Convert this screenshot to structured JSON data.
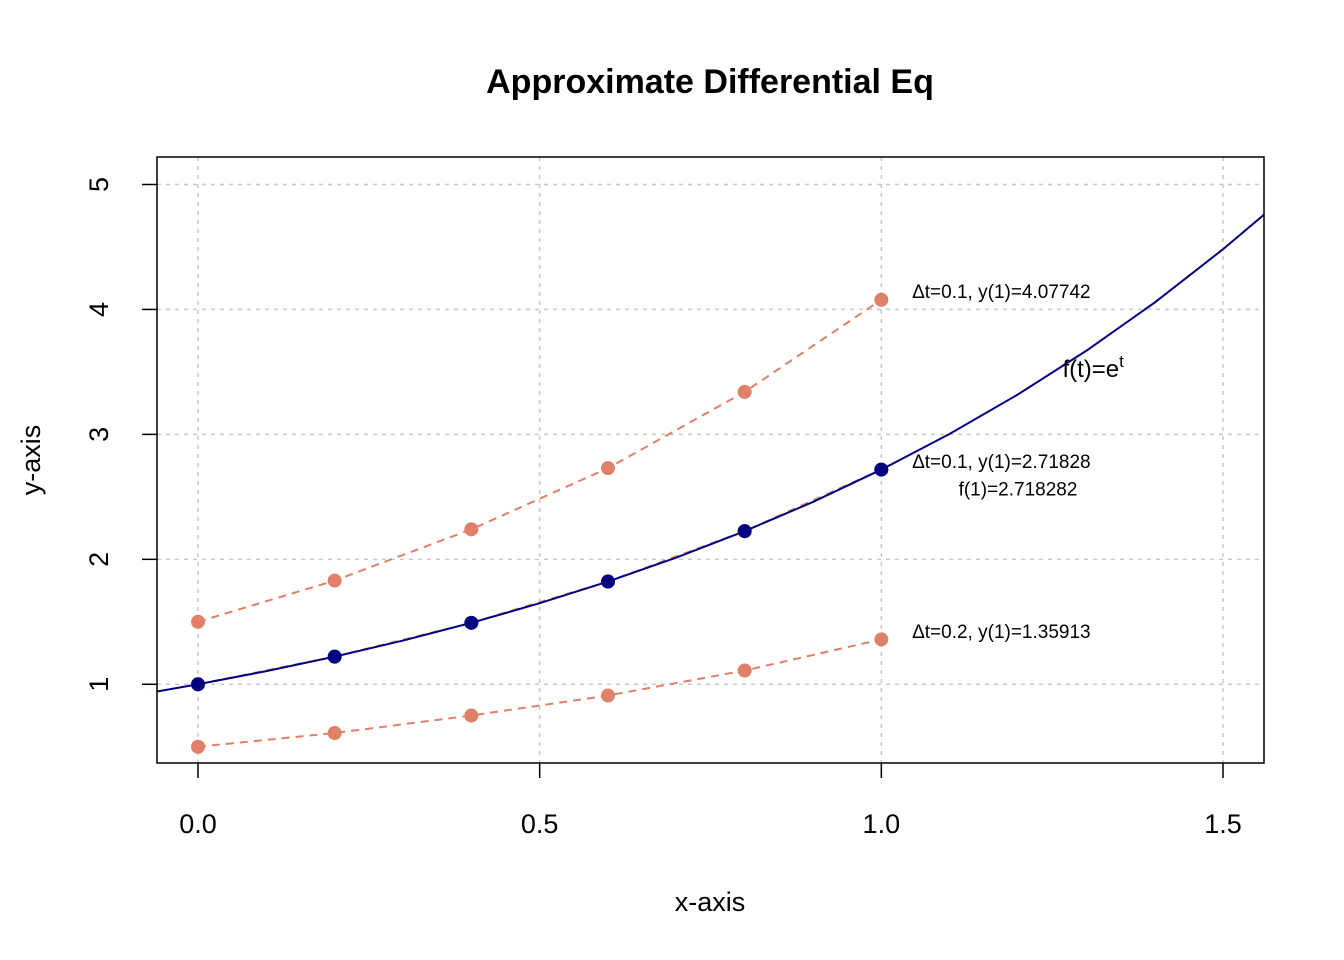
{
  "chart_data": {
    "type": "line",
    "title": "Approximate Differential Eq",
    "xlabel": "x-axis",
    "ylabel": "y-axis",
    "xlim": [
      -0.06,
      1.56
    ],
    "ylim": [
      0.37,
      5.22
    ],
    "xticks": [
      0.0,
      0.5,
      1.0,
      1.5
    ],
    "xtick_labels": [
      "0.0",
      "0.5",
      "1.0",
      "1.5"
    ],
    "yticks": [
      1,
      2,
      3,
      4,
      5
    ],
    "ytick_labels": [
      "1",
      "2",
      "3",
      "4",
      "5"
    ],
    "grid": true,
    "colors": {
      "approx": "#e08068",
      "exact": "#000080"
    },
    "series": [
      {
        "x": [
          0.0,
          0.2,
          0.4,
          0.6,
          0.8,
          1.0
        ],
        "y": [
          1.5,
          1.83,
          2.24,
          2.73,
          3.34,
          4.07742
        ],
        "style": "dashed-points",
        "color": "#e08068"
      },
      {
        "x": [
          0.0,
          0.2,
          0.4,
          0.6,
          0.8,
          1.0
        ],
        "y": [
          1.0,
          1.2214,
          1.4918,
          1.8221,
          2.2255,
          2.71828
        ],
        "style": "dashed-points",
        "color": "#e08068"
      },
      {
        "x": [
          0.0,
          0.2,
          0.4,
          0.6,
          0.8,
          1.0
        ],
        "y": [
          0.5,
          0.61,
          0.75,
          0.91,
          1.11,
          1.35913
        ],
        "style": "dashed-points",
        "color": "#e08068"
      },
      {
        "x": [
          -0.06,
          0.0,
          0.1,
          0.2,
          0.3,
          0.4,
          0.5,
          0.6,
          0.7,
          0.8,
          0.9,
          1.0,
          1.1,
          1.2,
          1.3,
          1.4,
          1.5,
          1.56
        ],
        "y": [
          0.9418,
          1.0,
          1.1052,
          1.2214,
          1.3499,
          1.4918,
          1.6487,
          1.8221,
          2.0138,
          2.2255,
          2.4596,
          2.7183,
          3.0042,
          3.3201,
          3.6693,
          4.0552,
          4.4817,
          4.7588
        ],
        "style": "line",
        "color": "#000080"
      },
      {
        "x": [
          0.0,
          0.2,
          0.4,
          0.6,
          0.8,
          1.0
        ],
        "y": [
          1.0,
          1.2214,
          1.4918,
          1.8221,
          2.2255,
          2.7183
        ],
        "style": "points",
        "color": "#000080"
      }
    ],
    "annotations": [
      {
        "id": "anno-upper",
        "text": "Δt=0.1, y(1)=4.07742",
        "x": 1.045,
        "y": 4.09,
        "anchor": "start",
        "size": "small"
      },
      {
        "id": "anno-middle",
        "text": "Δt=0.1, y(1)=2.71828",
        "x": 1.045,
        "y": 2.73,
        "anchor": "start",
        "size": "small"
      },
      {
        "id": "anno-exact-value",
        "text": "f(1)=2.718282",
        "x": 1.2,
        "y": 2.51,
        "anchor": "middle",
        "size": "small"
      },
      {
        "id": "anno-lower",
        "text": "Δt=0.2, y(1)=1.35913",
        "x": 1.045,
        "y": 1.37,
        "anchor": "start",
        "size": "small"
      },
      {
        "id": "anno-curve",
        "text": "f(t)=e",
        "superscript": "t",
        "x": 1.31,
        "y": 3.46,
        "anchor": "middle",
        "size": "big"
      }
    ]
  }
}
